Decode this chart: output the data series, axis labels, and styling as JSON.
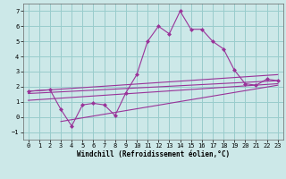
{
  "bg_color": "#cce8e8",
  "grid_color": "#99cccc",
  "line_color": "#993399",
  "xlabel": "Windchill (Refroidissement éolien,°C)",
  "xlim": [
    -0.5,
    23.5
  ],
  "ylim": [
    -1.5,
    7.5
  ],
  "yticks": [
    -1,
    0,
    1,
    2,
    3,
    4,
    5,
    6,
    7
  ],
  "xticks": [
    0,
    1,
    2,
    3,
    4,
    5,
    6,
    7,
    8,
    9,
    10,
    11,
    12,
    13,
    14,
    15,
    16,
    17,
    18,
    19,
    20,
    21,
    22,
    23
  ],
  "series1_x": [
    0,
    2,
    3,
    4,
    5,
    6,
    7,
    8,
    9,
    10,
    11,
    12,
    13,
    14,
    15,
    16,
    17,
    18,
    19,
    20,
    21,
    22,
    23
  ],
  "series1_y": [
    1.7,
    1.8,
    0.5,
    -0.6,
    0.8,
    0.9,
    0.8,
    0.1,
    1.6,
    2.8,
    5.0,
    6.0,
    5.5,
    7.0,
    5.8,
    5.8,
    5.0,
    4.5,
    3.1,
    2.2,
    2.1,
    2.5,
    2.4
  ],
  "series2_x": [
    0,
    23
  ],
  "series2_y": [
    1.7,
    2.8
  ],
  "series3_x": [
    0,
    23
  ],
  "series3_y": [
    1.55,
    2.4
  ],
  "series4_x": [
    0,
    23
  ],
  "series4_y": [
    1.1,
    2.2
  ],
  "series5_x": [
    3,
    23
  ],
  "series5_y": [
    -0.3,
    2.1
  ]
}
